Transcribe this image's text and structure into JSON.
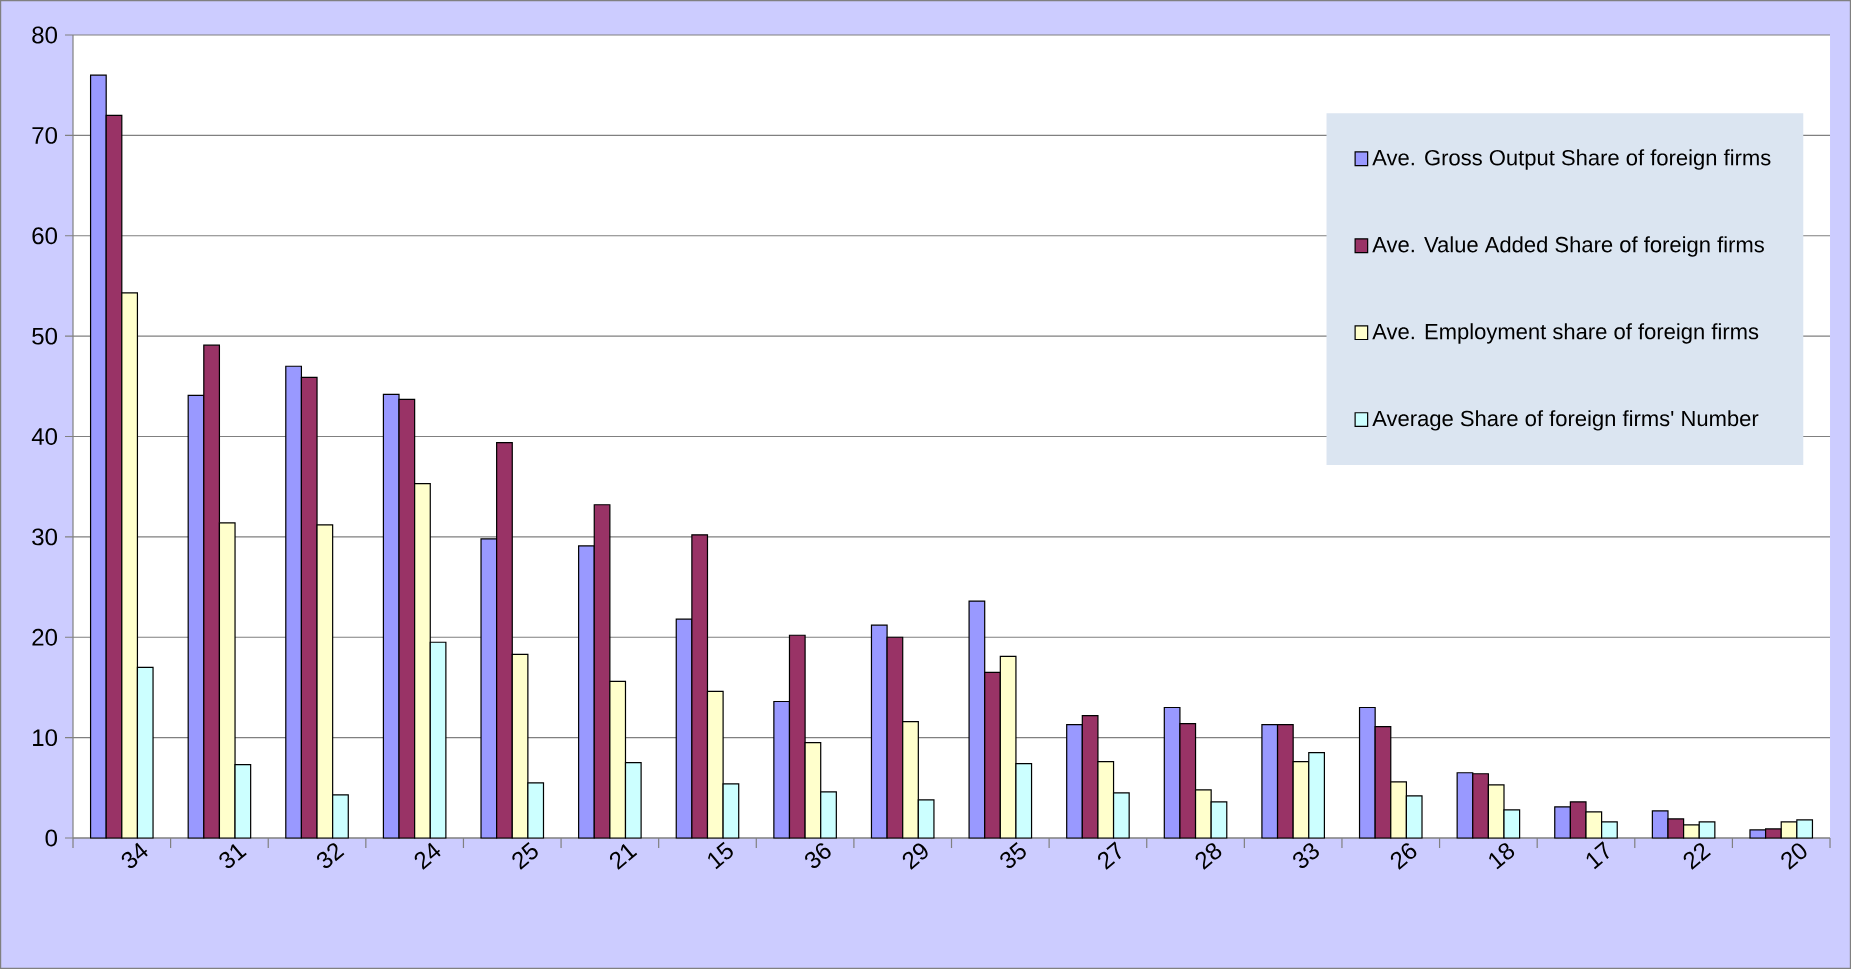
{
  "chart_data": {
    "type": "bar",
    "categories": [
      "34",
      "31",
      "32",
      "24",
      "25",
      "21",
      "15",
      "36",
      "29",
      "35",
      "27",
      "28",
      "33",
      "26",
      "18",
      "17",
      "22",
      "20"
    ],
    "series": [
      {
        "name": "Ave. Gross Output Share of foreign firms",
        "color": "#9999ff",
        "values": [
          76,
          44.1,
          47,
          44.2,
          29.8,
          29.1,
          21.8,
          13.6,
          21.2,
          23.6,
          11.3,
          13,
          11.3,
          13,
          6.5,
          3.1,
          2.7,
          0.8
        ]
      },
      {
        "name": "Ave. Value Added Share of foreign firms",
        "color": "#993366",
        "values": [
          72,
          49.1,
          45.9,
          43.7,
          39.4,
          33.2,
          30.2,
          20.2,
          20,
          16.5,
          12.2,
          11.4,
          11.3,
          11.1,
          6.4,
          3.6,
          1.9,
          0.9
        ]
      },
      {
        "name": "Ave. Employment share of foreign firms",
        "color": "#ffffcc",
        "values": [
          54.3,
          31.4,
          31.2,
          35.3,
          18.3,
          15.6,
          14.6,
          9.5,
          11.6,
          18.1,
          7.6,
          4.8,
          7.6,
          5.6,
          5.3,
          2.6,
          1.3,
          1.6
        ]
      },
      {
        "name": "Average Share of foreign firms' Number",
        "color": "#ccffff",
        "values": [
          17,
          7.3,
          4.3,
          19.5,
          5.5,
          7.5,
          5.4,
          4.6,
          3.8,
          7.4,
          4.5,
          3.6,
          8.5,
          4.2,
          2.8,
          1.6,
          1.6,
          1.8
        ]
      }
    ],
    "ylim": [
      0,
      80
    ],
    "yticks": [
      0,
      10,
      20,
      30,
      40,
      50,
      60,
      70,
      80
    ],
    "grid": "y",
    "legend": "top right"
  }
}
